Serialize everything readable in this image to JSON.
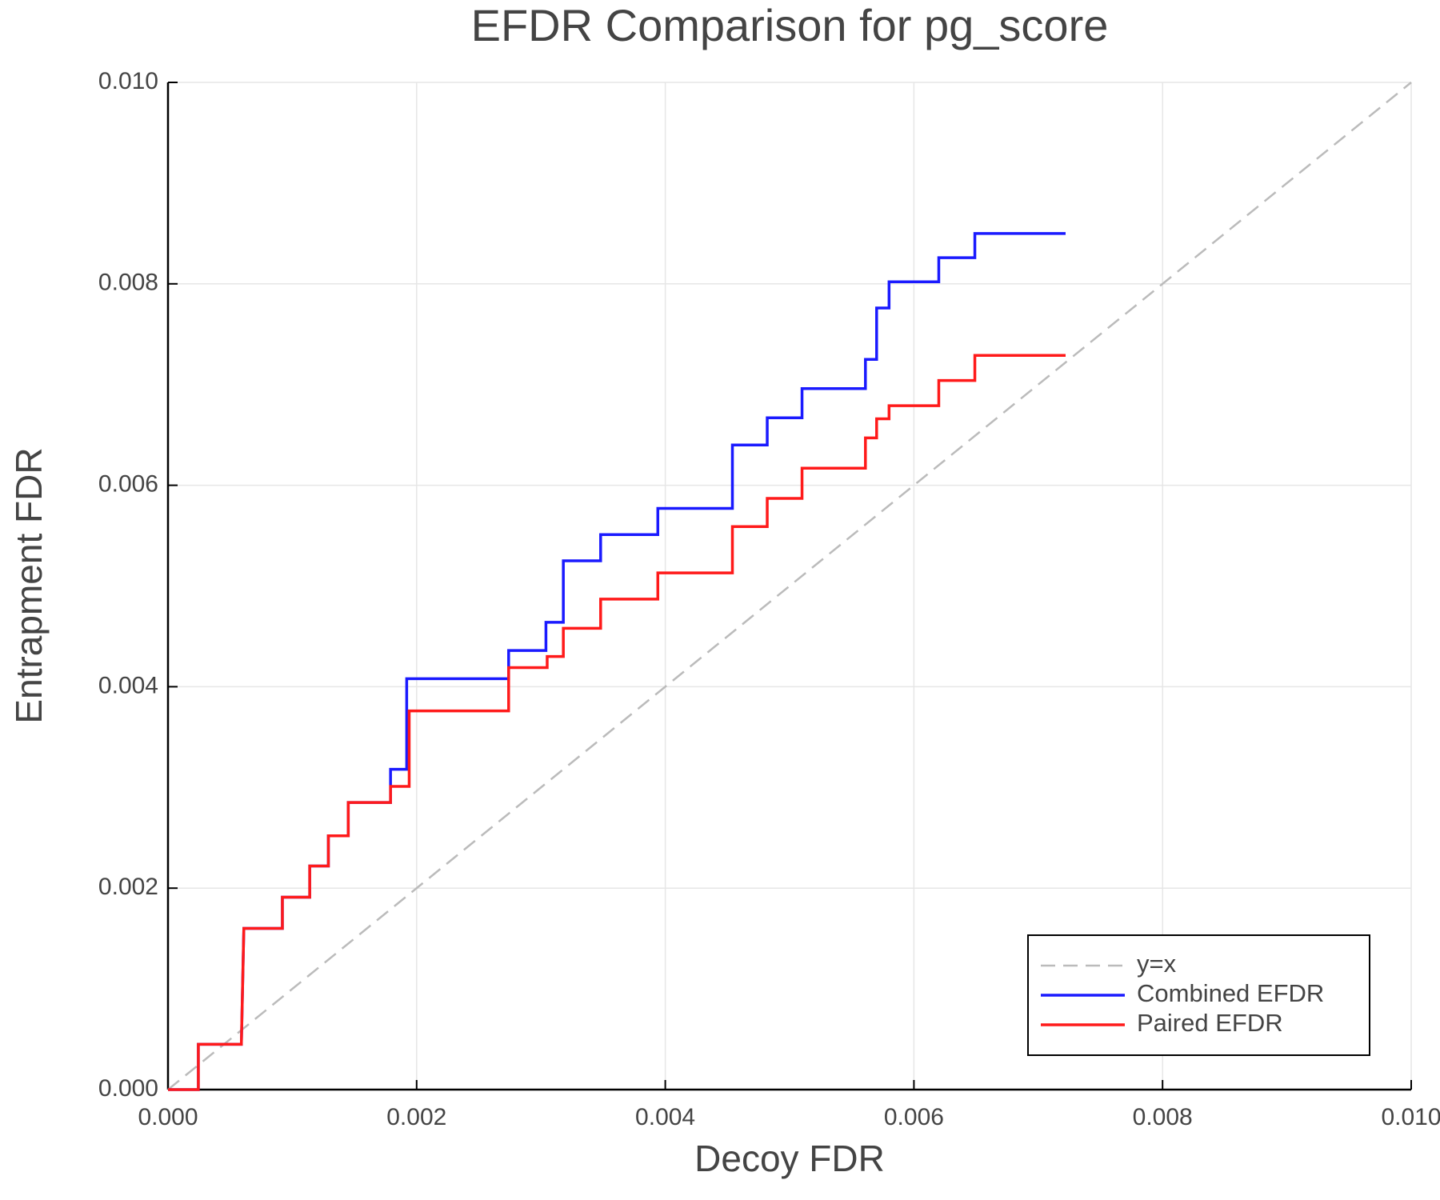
{
  "chart_data": {
    "type": "line",
    "title": "EFDR Comparison for pg_score",
    "x_label": "Decoy FDR",
    "y_label": "Entrapment FDR",
    "xlim": [
      0,
      0.01
    ],
    "ylim": [
      0,
      0.01
    ],
    "xticks": [
      {
        "value": 0,
        "label": "0.000"
      },
      0.002,
      0.004,
      0.006,
      0.008,
      {
        "value": 0.01,
        "label": "0.010"
      }
    ],
    "yticks": [
      {
        "value": 0,
        "label": "0.000"
      },
      0.002,
      0.004,
      0.006,
      0.008,
      {
        "value": 0.01,
        "label": "0.010"
      }
    ],
    "grid": true,
    "legend": "bottom-right",
    "series": [
      {
        "name": "y=x",
        "color": "#bbbbbb",
        "dashed": true,
        "x": [
          0,
          0.01
        ],
        "values": [
          0,
          0.01
        ]
      },
      {
        "name": "Combined EFDR",
        "color": "#1a1aff",
        "dashed": false,
        "x": [
          0,
          0.000244,
          0.000244,
          0.00059,
          0.00061,
          0.00092,
          0.00092,
          0.00114,
          0.00114,
          0.00129,
          0.00129,
          0.00145,
          0.00145,
          0.00179,
          0.00179,
          0.00192,
          0.00192,
          0.00274,
          0.00274,
          0.00304,
          0.00304,
          0.00318,
          0.00318,
          0.00348,
          0.00348,
          0.00394,
          0.00394,
          0.00454,
          0.00454,
          0.00482,
          0.00482,
          0.0051,
          0.0051,
          0.00561,
          0.00561,
          0.0057,
          0.0057,
          0.0058,
          0.0058,
          0.0062,
          0.0062,
          0.00649,
          0.00649,
          0.00722
        ],
        "values": [
          0,
          0,
          0.00045,
          0.00045,
          0.0016,
          0.0016,
          0.00191,
          0.00191,
          0.00222,
          0.00222,
          0.00252,
          0.00252,
          0.00285,
          0.00285,
          0.00318,
          0.00318,
          0.00408,
          0.00408,
          0.00436,
          0.00436,
          0.00464,
          0.00464,
          0.00525,
          0.00525,
          0.00551,
          0.00551,
          0.00577,
          0.00577,
          0.0064,
          0.0064,
          0.00667,
          0.00667,
          0.00696,
          0.00696,
          0.00725,
          0.00725,
          0.00776,
          0.00776,
          0.00802,
          0.00802,
          0.00826,
          0.00826,
          0.0085,
          0.0085
        ]
      },
      {
        "name": "Paired EFDR",
        "color": "#ff1a1a",
        "dashed": false,
        "x": [
          0,
          0.000244,
          0.000244,
          0.00059,
          0.00061,
          0.00092,
          0.00092,
          0.00114,
          0.00114,
          0.00129,
          0.00129,
          0.00145,
          0.00145,
          0.00179,
          0.00179,
          0.00194,
          0.00194,
          0.00274,
          0.00274,
          0.00305,
          0.00305,
          0.00318,
          0.00318,
          0.00348,
          0.00348,
          0.00394,
          0.00394,
          0.00454,
          0.00454,
          0.00482,
          0.00482,
          0.0051,
          0.0051,
          0.00561,
          0.00561,
          0.0057,
          0.0057,
          0.0058,
          0.0058,
          0.0062,
          0.0062,
          0.00649,
          0.00649,
          0.00722
        ],
        "values": [
          0,
          0,
          0.00045,
          0.00045,
          0.0016,
          0.0016,
          0.00191,
          0.00191,
          0.00222,
          0.00222,
          0.00252,
          0.00252,
          0.00285,
          0.00285,
          0.00301,
          0.00301,
          0.00376,
          0.00376,
          0.00419,
          0.00419,
          0.0043,
          0.0043,
          0.00458,
          0.00458,
          0.00487,
          0.00487,
          0.00513,
          0.00513,
          0.00559,
          0.00559,
          0.00587,
          0.00587,
          0.00617,
          0.00617,
          0.00647,
          0.00647,
          0.00666,
          0.00666,
          0.00679,
          0.00679,
          0.00704,
          0.00704,
          0.00729,
          0.00729
        ]
      }
    ]
  }
}
